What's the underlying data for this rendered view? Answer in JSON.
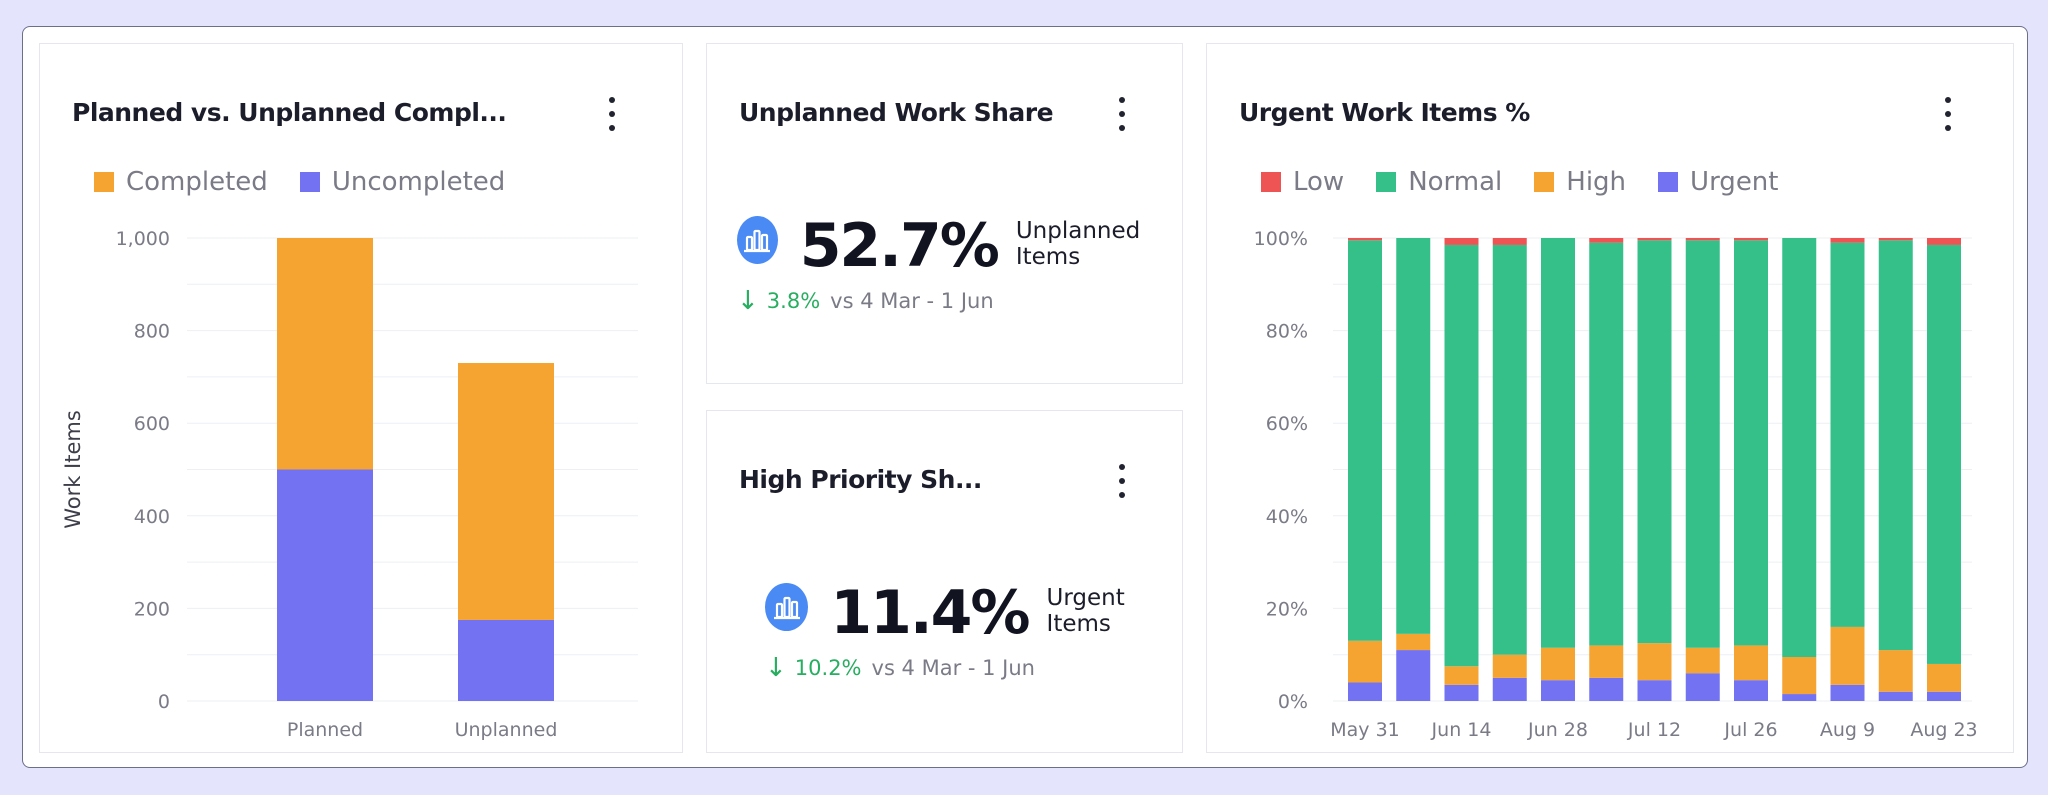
{
  "colors": {
    "completed": "#f6a431",
    "uncompleted": "#7272f2",
    "low": "#ef5454",
    "normal": "#35c08a",
    "high": "#f6a431",
    "urgent": "#7272f2",
    "positive": "#27ae60",
    "icon_bg": "#4a8af4"
  },
  "planned_card": {
    "title": "Planned vs. Unplanned Compl...",
    "menu_icon": "kebab-menu-icon"
  },
  "unplanned_card": {
    "title": "Unplanned Work Share",
    "menu_icon": "kebab-menu-icon",
    "icon": "bar-chart-icon",
    "value": "52.7%",
    "unit": "Unplanned Items",
    "delta_arrow": "↓",
    "delta": "3.8%",
    "comparison": "vs 4 Mar - 1 Jun"
  },
  "high_priority_card": {
    "title": "High Priority Sh...",
    "menu_icon": "kebab-menu-icon",
    "icon": "bar-chart-icon",
    "value": "11.4%",
    "unit": "Urgent Items",
    "delta_arrow": "↓",
    "delta": "10.2%",
    "comparison": "vs 4 Mar - 1 Jun"
  },
  "urgent_card": {
    "title": "Urgent Work Items %",
    "menu_icon": "kebab-menu-icon"
  },
  "chart_data": [
    {
      "type": "bar",
      "stacked": true,
      "categories": [
        "Planned",
        "Unplanned"
      ],
      "series": [
        {
          "name": "Uncompleted",
          "values": [
            500,
            175
          ]
        },
        {
          "name": "Completed",
          "values": [
            500,
            555
          ]
        }
      ],
      "ylabel": "Work Items",
      "ylim": [
        0,
        1000
      ],
      "yticks": [
        0,
        200,
        400,
        600,
        800,
        1000
      ],
      "ytick_labels": [
        "0",
        "200",
        "400",
        "600",
        "800",
        "1,000"
      ],
      "grid": true,
      "legend": "top-left",
      "legend_order": [
        "Completed",
        "Uncompleted"
      ]
    },
    {
      "type": "bar",
      "stacked": true,
      "x_tick_labels": [
        "May 31",
        "Jun 14",
        "Jun 28",
        "Jul 12",
        "Jul 26",
        "Aug 9",
        "Aug 23"
      ],
      "bar_count": 13,
      "series": [
        {
          "name": "Urgent",
          "values": [
            4,
            11,
            3.5,
            5,
            4.5,
            5,
            4.5,
            6,
            4.5,
            1.5,
            3.5,
            2,
            2
          ]
        },
        {
          "name": "High",
          "values": [
            9,
            3.5,
            4,
            5,
            7,
            7,
            8,
            5.5,
            7.5,
            8,
            12.5,
            9,
            6
          ]
        },
        {
          "name": "Normal",
          "values": [
            86.5,
            85.5,
            91,
            88.5,
            88.5,
            87,
            87,
            88,
            87.5,
            90.5,
            83,
            88.5,
            90.5
          ]
        },
        {
          "name": "Low",
          "values": [
            0.5,
            0,
            1.5,
            1.5,
            0,
            1,
            0.5,
            0.5,
            0.5,
            0,
            1,
            0.5,
            1.5
          ]
        }
      ],
      "ylim": [
        0,
        100
      ],
      "yticks": [
        0,
        20,
        40,
        60,
        80,
        100
      ],
      "ytick_labels": [
        "0%",
        "20%",
        "40%",
        "60%",
        "80%",
        "100%"
      ],
      "grid": true,
      "legend": "top-left",
      "legend_order": [
        "Low",
        "Normal",
        "High",
        "Urgent"
      ]
    }
  ]
}
